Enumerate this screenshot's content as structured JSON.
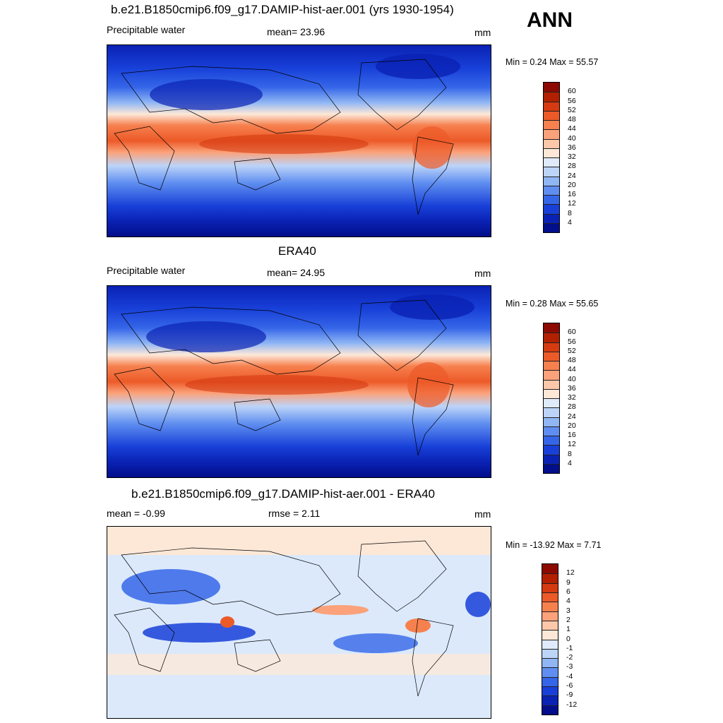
{
  "season": "ANN",
  "panels": [
    {
      "title": "b.e21.B1850cmip6.f09_g17.DAMIP-hist-aer.001 (yrs 1930-1954)",
      "left_label": "Precipitable water",
      "center_label": "mean=  23.96",
      "units": "mm",
      "minmax": "Min =   0.24 Max =  55.57",
      "levels": [
        "60",
        "56",
        "52",
        "48",
        "44",
        "40",
        "36",
        "32",
        "28",
        "24",
        "20",
        "16",
        "12",
        "8",
        "4"
      ]
    },
    {
      "title": "ERA40",
      "left_label": "Precipitable water",
      "center_label": "mean=  24.95",
      "units": "mm",
      "minmax": "Min =   0.28 Max =  55.65",
      "levels": [
        "60",
        "56",
        "52",
        "48",
        "44",
        "40",
        "36",
        "32",
        "28",
        "24",
        "20",
        "16",
        "12",
        "8",
        "4"
      ]
    },
    {
      "title": "b.e21.B1850cmip6.f09_g17.DAMIP-hist-aer.001 - ERA40",
      "left_label": "mean =  -0.99",
      "center_label": "rmse =   2.11",
      "units": "mm",
      "minmax": "Min = -13.92 Max =   7.71",
      "levels": [
        "12",
        "9",
        "6",
        "4",
        "3",
        "2",
        "1",
        "0",
        "-1",
        "-2",
        "-3",
        "-4",
        "-6",
        "-9",
        "-12"
      ]
    }
  ],
  "colors": {
    "abs_scale": [
      "#8c0a00",
      "#b22000",
      "#d63a10",
      "#ec5a28",
      "#f6804e",
      "#fba27a",
      "#fdc8aa",
      "#fde8d8",
      "#dfeafa",
      "#bcd4f8",
      "#90b6f4",
      "#5f8ef0",
      "#3566e8",
      "#1840d8",
      "#0a22b4",
      "#020e8a"
    ],
    "diff_scale": [
      "#8c0a00",
      "#b22000",
      "#d63a10",
      "#ec5a28",
      "#f6804e",
      "#fba27a",
      "#fdc8aa",
      "#fde8d8",
      "#dfeafa",
      "#bcd4f8",
      "#90b6f4",
      "#5f8ef0",
      "#3566e8",
      "#1840d8",
      "#0a22b4",
      "#020e8a"
    ]
  }
}
